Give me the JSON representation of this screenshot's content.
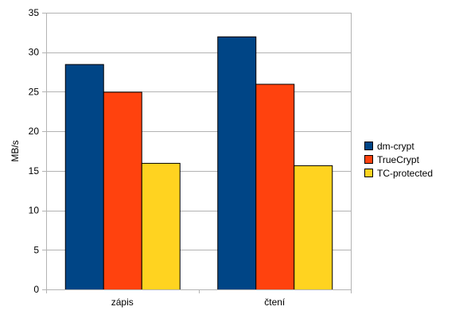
{
  "chart_data": {
    "type": "bar",
    "title": "",
    "xlabel": "",
    "ylabel": "MB/s",
    "ylim": [
      0,
      35
    ],
    "yticks": [
      0,
      5,
      10,
      15,
      20,
      25,
      30,
      35
    ],
    "grid": true,
    "legend_position": "right",
    "categories": [
      "zápis",
      "čtení"
    ],
    "series": [
      {
        "name": "dm-crypt",
        "color": "#004586",
        "values": [
          28.5,
          32
        ]
      },
      {
        "name": "TrueCrypt",
        "color": "#ff420e",
        "values": [
          25,
          26
        ]
      },
      {
        "name": "TC-protected",
        "color": "#ffd320",
        "values": [
          16,
          15.7
        ]
      }
    ]
  }
}
